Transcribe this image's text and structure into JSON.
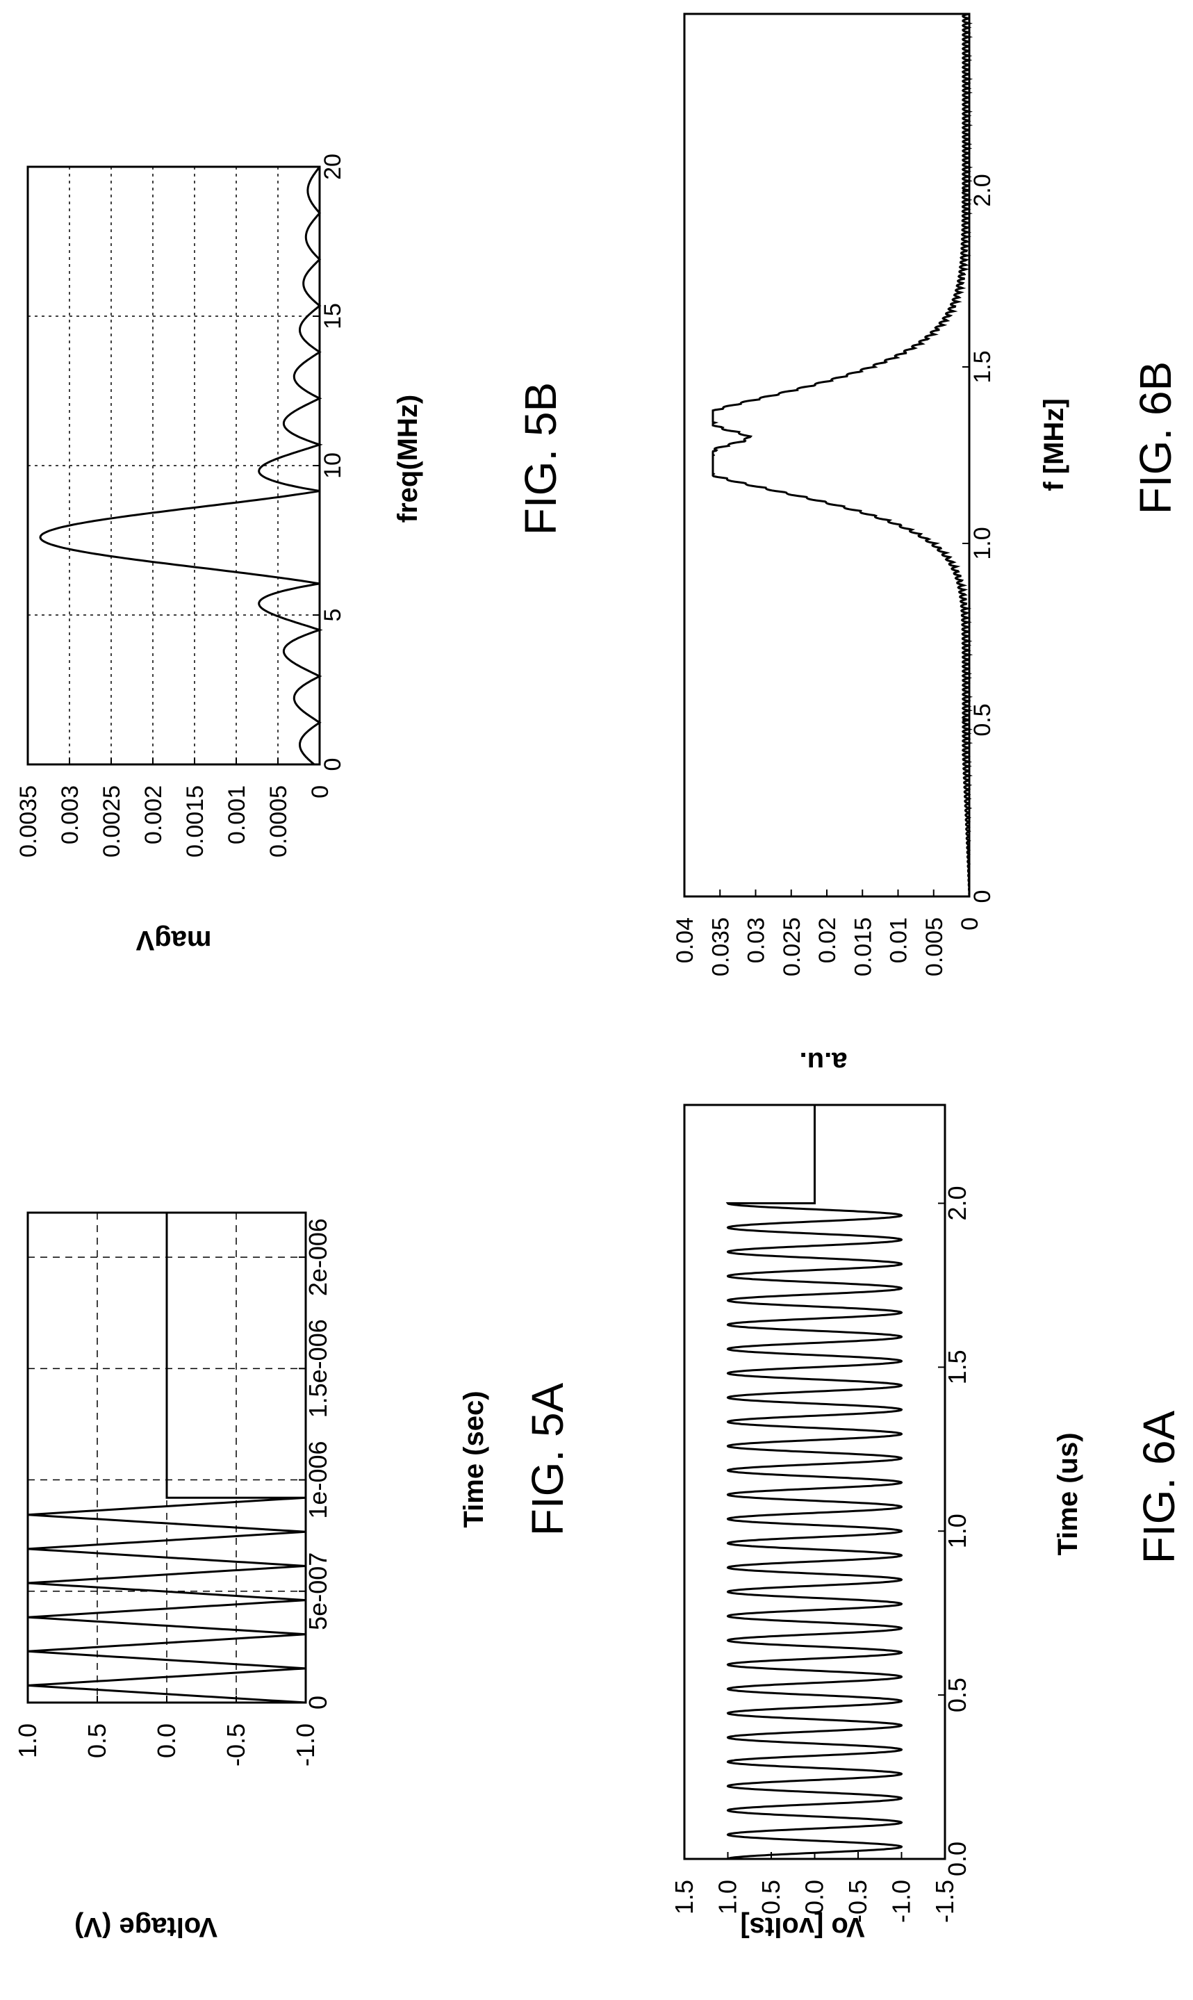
{
  "chart_data": [
    {
      "figure_label": "FIG. 5A",
      "type": "line",
      "xlabel": "Time (sec)",
      "ylabel": "Voltage (V)",
      "xlim": [
        0,
        2.2e-06
      ],
      "ylim": [
        -1.0,
        1.0
      ],
      "x_ticks": [
        0,
        5e-07,
        1e-06,
        1.5e-06,
        2e-06
      ],
      "x_tick_labels": [
        "0",
        "5e-007",
        "1e-006",
        "1.5e-006",
        "2e-006"
      ],
      "y_ticks": [
        -1.0,
        -0.5,
        0.0,
        0.5,
        1.0
      ],
      "y_tick_labels": [
        "-1.0",
        "-0.5",
        "0.0",
        "0.5",
        "1.0"
      ],
      "grid": true,
      "signal": {
        "shape": "triangle",
        "cycles": 6,
        "t_end": 9.2e-07,
        "amplitude": 1.0,
        "after_end_value": 0.0,
        "end_time": 2.2e-06
      }
    },
    {
      "figure_label": "FIG. 5B",
      "type": "line",
      "xlabel": "freq(MHz)",
      "ylabel": "magV",
      "xlim": [
        0,
        20
      ],
      "ylim": [
        0,
        0.0035
      ],
      "x_ticks": [
        0,
        5,
        10,
        15,
        20
      ],
      "x_tick_labels": [
        "0",
        "5",
        "10",
        "15",
        "20"
      ],
      "y_ticks": [
        0,
        0.0005,
        0.001,
        0.0015,
        0.002,
        0.0025,
        0.003,
        0.0035
      ],
      "y_tick_labels": [
        "0",
        "0.0005",
        "0.001",
        "0.0015",
        "0.002",
        "0.0025",
        "0.003",
        "0.0035"
      ],
      "grid": true,
      "spectrum": {
        "shape": "sinc",
        "center": 7.6,
        "peak": 0.00335,
        "first_null_offset": 1.55
      }
    },
    {
      "figure_label": "FIG. 6A",
      "type": "line",
      "xlabel": "Time (us)",
      "ylabel": "Vo [volts]",
      "xlim": [
        0,
        2.3
      ],
      "ylim": [
        -1.5,
        1.5
      ],
      "x_ticks": [
        0,
        0.5,
        1.0,
        1.5,
        2.0
      ],
      "x_tick_labels": [
        "0.0",
        "0.5",
        "1.0",
        "1.5",
        "2.0"
      ],
      "y_ticks": [
        -1.5,
        -1.0,
        -0.5,
        0,
        0.5,
        1.0,
        1.5
      ],
      "y_tick_labels": [
        "-1.5",
        "-1.0",
        "-0.5",
        "0.0",
        "0.5",
        "1.0",
        "1.5"
      ],
      "grid": false,
      "signal": {
        "shape": "sine",
        "frequency_mhz": 13.5,
        "t_end": 2.0,
        "amplitude": 1.0,
        "after_end_value": 0.0,
        "end_time": 2.3
      }
    },
    {
      "figure_label": "FIG. 6B",
      "type": "line",
      "xlabel": "f [MHz]",
      "ylabel": "a.u.",
      "xlim": [
        0,
        2.5
      ],
      "ylim": [
        0,
        0.04
      ],
      "x_ticks": [
        0,
        0.5,
        1.0,
        1.5,
        2.0
      ],
      "x_tick_labels": [
        "0",
        "0.5",
        "1.0",
        "1.5",
        "2.0"
      ],
      "y_ticks": [
        0,
        0.005,
        0.01,
        0.015,
        0.02,
        0.025,
        0.03,
        0.035,
        0.04
      ],
      "y_tick_labels": [
        "0",
        "0.005",
        "0.01",
        "0.015",
        "0.02",
        "0.025",
        "0.03",
        "0.035",
        "0.04"
      ],
      "grid": false,
      "spectrum": {
        "shape": "band",
        "band_start": 1.2,
        "band_end": 1.37,
        "dip_at": 1.3,
        "peak": 0.036,
        "dip_value": 0.0305
      }
    }
  ]
}
